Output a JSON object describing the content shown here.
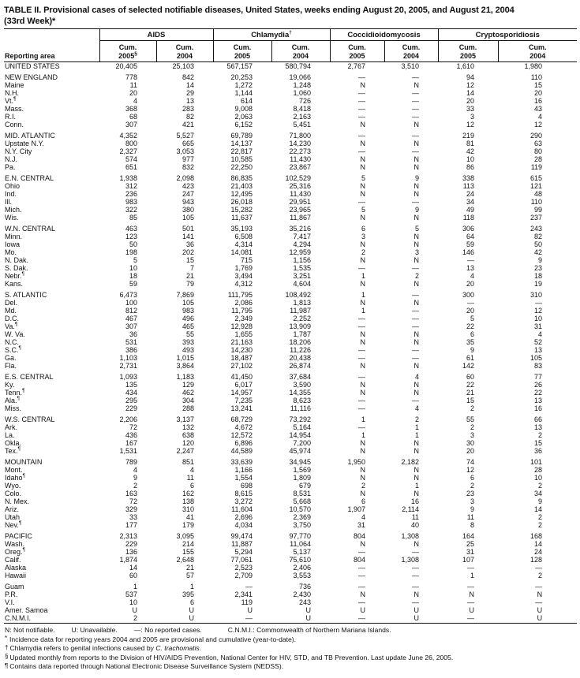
{
  "title": {
    "line1": "TABLE II. Provisional cases of selected notifiable diseases, United States, weeks ending August 20, 2005, and August 21, 2004",
    "line2": "(33rd Week)*"
  },
  "header": {
    "reporting_area": "Reporting area",
    "groups": [
      {
        "name": "AIDS",
        "marker": ""
      },
      {
        "name": "Chlamydia",
        "marker": "†"
      },
      {
        "name": "Coccidioidomycosis",
        "marker": ""
      },
      {
        "name": "Cryptosporidiosis",
        "marker": ""
      }
    ],
    "subcols": [
      {
        "line1": "Cum.",
        "line2": "2005",
        "marker": "§"
      },
      {
        "line1": "Cum.",
        "line2": "2004",
        "marker": ""
      },
      {
        "line1": "Cum.",
        "line2": "2005",
        "marker": ""
      },
      {
        "line1": "Cum.",
        "line2": "2004",
        "marker": ""
      },
      {
        "line1": "Cum.",
        "line2": "2005",
        "marker": ""
      },
      {
        "line1": "Cum.",
        "line2": "2004",
        "marker": ""
      },
      {
        "line1": "Cum.",
        "line2": "2005",
        "marker": ""
      },
      {
        "line1": "Cum.",
        "line2": "2004",
        "marker": ""
      }
    ]
  },
  "rows": [
    {
      "label": "UNITED STATES",
      "marker": "",
      "gap": false,
      "values": [
        "20,405",
        "25,103",
        "567,157",
        "580,794",
        "2,767",
        "3,510",
        "1,610",
        "1,980"
      ]
    },
    {
      "label": "NEW ENGLAND",
      "marker": "",
      "gap": true,
      "values": [
        "778",
        "842",
        "20,253",
        "19,066",
        "—",
        "—",
        "94",
        "110"
      ]
    },
    {
      "label": "Maine",
      "marker": "",
      "gap": false,
      "values": [
        "11",
        "14",
        "1,272",
        "1,248",
        "N",
        "N",
        "12",
        "15"
      ]
    },
    {
      "label": "N.H.",
      "marker": "",
      "gap": false,
      "values": [
        "20",
        "29",
        "1,144",
        "1,060",
        "—",
        "—",
        "14",
        "20"
      ]
    },
    {
      "label": "Vt.",
      "marker": "¶",
      "gap": false,
      "values": [
        "4",
        "13",
        "614",
        "726",
        "—",
        "—",
        "20",
        "16"
      ]
    },
    {
      "label": "Mass.",
      "marker": "",
      "gap": false,
      "values": [
        "368",
        "283",
        "9,008",
        "8,418",
        "—",
        "—",
        "33",
        "43"
      ]
    },
    {
      "label": "R.I.",
      "marker": "",
      "gap": false,
      "values": [
        "68",
        "82",
        "2,063",
        "2,163",
        "—",
        "—",
        "3",
        "4"
      ]
    },
    {
      "label": "Conn.",
      "marker": "",
      "gap": false,
      "values": [
        "307",
        "421",
        "6,152",
        "5,451",
        "N",
        "N",
        "12",
        "12"
      ]
    },
    {
      "label": "MID. ATLANTIC",
      "marker": "",
      "gap": true,
      "values": [
        "4,352",
        "5,527",
        "69,789",
        "71,800",
        "—",
        "—",
        "219",
        "290"
      ]
    },
    {
      "label": "Upstate N.Y.",
      "marker": "",
      "gap": false,
      "values": [
        "800",
        "665",
        "14,137",
        "14,230",
        "N",
        "N",
        "81",
        "63"
      ]
    },
    {
      "label": "N.Y. City",
      "marker": "",
      "gap": false,
      "values": [
        "2,327",
        "3,053",
        "22,817",
        "22,273",
        "—",
        "—",
        "42",
        "80"
      ]
    },
    {
      "label": "N.J.",
      "marker": "",
      "gap": false,
      "values": [
        "574",
        "977",
        "10,585",
        "11,430",
        "N",
        "N",
        "10",
        "28"
      ]
    },
    {
      "label": "Pa.",
      "marker": "",
      "gap": false,
      "values": [
        "651",
        "832",
        "22,250",
        "23,867",
        "N",
        "N",
        "86",
        "119"
      ]
    },
    {
      "label": "E.N. CENTRAL",
      "marker": "",
      "gap": true,
      "values": [
        "1,938",
        "2,098",
        "86,835",
        "102,529",
        "5",
        "9",
        "338",
        "615"
      ]
    },
    {
      "label": "Ohio",
      "marker": "",
      "gap": false,
      "values": [
        "312",
        "423",
        "21,403",
        "25,316",
        "N",
        "N",
        "113",
        "121"
      ]
    },
    {
      "label": "Ind.",
      "marker": "",
      "gap": false,
      "values": [
        "236",
        "247",
        "12,495",
        "11,430",
        "N",
        "N",
        "24",
        "48"
      ]
    },
    {
      "label": "Ill.",
      "marker": "",
      "gap": false,
      "values": [
        "983",
        "943",
        "26,018",
        "29,951",
        "—",
        "—",
        "34",
        "110"
      ]
    },
    {
      "label": "Mich.",
      "marker": "",
      "gap": false,
      "values": [
        "322",
        "380",
        "15,282",
        "23,965",
        "5",
        "9",
        "49",
        "99"
      ]
    },
    {
      "label": "Wis.",
      "marker": "",
      "gap": false,
      "values": [
        "85",
        "105",
        "11,637",
        "11,867",
        "N",
        "N",
        "118",
        "237"
      ]
    },
    {
      "label": "W.N. CENTRAL",
      "marker": "",
      "gap": true,
      "values": [
        "463",
        "501",
        "35,193",
        "35,216",
        "6",
        "5",
        "306",
        "243"
      ]
    },
    {
      "label": "Minn.",
      "marker": "",
      "gap": false,
      "values": [
        "123",
        "141",
        "6,508",
        "7,417",
        "3",
        "N",
        "64",
        "82"
      ]
    },
    {
      "label": "Iowa",
      "marker": "",
      "gap": false,
      "values": [
        "50",
        "36",
        "4,314",
        "4,294",
        "N",
        "N",
        "59",
        "50"
      ]
    },
    {
      "label": "Mo.",
      "marker": "",
      "gap": false,
      "values": [
        "198",
        "202",
        "14,081",
        "12,959",
        "2",
        "3",
        "146",
        "42"
      ]
    },
    {
      "label": "N. Dak.",
      "marker": "",
      "gap": false,
      "values": [
        "5",
        "15",
        "715",
        "1,156",
        "N",
        "N",
        "—",
        "9"
      ]
    },
    {
      "label": "S. Dak.",
      "marker": "",
      "gap": false,
      "values": [
        "10",
        "7",
        "1,769",
        "1,535",
        "—",
        "—",
        "13",
        "23"
      ]
    },
    {
      "label": "Nebr.",
      "marker": "¶",
      "gap": false,
      "values": [
        "18",
        "21",
        "3,494",
        "3,251",
        "1",
        "2",
        "4",
        "18"
      ]
    },
    {
      "label": "Kans.",
      "marker": "",
      "gap": false,
      "values": [
        "59",
        "79",
        "4,312",
        "4,604",
        "N",
        "N",
        "20",
        "19"
      ]
    },
    {
      "label": "S. ATLANTIC",
      "marker": "",
      "gap": true,
      "values": [
        "6,473",
        "7,869",
        "111,795",
        "108,492",
        "1",
        "—",
        "300",
        "310"
      ]
    },
    {
      "label": "Del.",
      "marker": "",
      "gap": false,
      "values": [
        "100",
        "105",
        "2,086",
        "1,813",
        "N",
        "N",
        "—",
        "—"
      ]
    },
    {
      "label": "Md.",
      "marker": "",
      "gap": false,
      "values": [
        "812",
        "983",
        "11,795",
        "11,987",
        "1",
        "—",
        "20",
        "12"
      ]
    },
    {
      "label": "D.C.",
      "marker": "",
      "gap": false,
      "values": [
        "467",
        "496",
        "2,349",
        "2,252",
        "—",
        "—",
        "5",
        "10"
      ]
    },
    {
      "label": "Va.",
      "marker": "¶",
      "gap": false,
      "values": [
        "307",
        "465",
        "12,928",
        "13,909",
        "—",
        "—",
        "22",
        "31"
      ]
    },
    {
      "label": "W. Va.",
      "marker": "",
      "gap": false,
      "values": [
        "36",
        "55",
        "1,655",
        "1,787",
        "N",
        "N",
        "6",
        "4"
      ]
    },
    {
      "label": "N.C.",
      "marker": "",
      "gap": false,
      "values": [
        "531",
        "393",
        "21,163",
        "18,206",
        "N",
        "N",
        "35",
        "52"
      ]
    },
    {
      "label": "S.C.",
      "marker": "¶",
      "gap": false,
      "values": [
        "386",
        "493",
        "14,230",
        "11,226",
        "—",
        "—",
        "9",
        "13"
      ]
    },
    {
      "label": "Ga.",
      "marker": "",
      "gap": false,
      "values": [
        "1,103",
        "1,015",
        "18,487",
        "20,438",
        "—",
        "—",
        "61",
        "105"
      ]
    },
    {
      "label": "Fla.",
      "marker": "",
      "gap": false,
      "values": [
        "2,731",
        "3,864",
        "27,102",
        "26,874",
        "N",
        "N",
        "142",
        "83"
      ]
    },
    {
      "label": "E.S. CENTRAL",
      "marker": "",
      "gap": true,
      "values": [
        "1,093",
        "1,183",
        "41,450",
        "37,684",
        "—",
        "4",
        "60",
        "77"
      ]
    },
    {
      "label": "Ky.",
      "marker": "",
      "gap": false,
      "values": [
        "135",
        "129",
        "6,017",
        "3,590",
        "N",
        "N",
        "22",
        "26"
      ]
    },
    {
      "label": "Tenn.",
      "marker": "¶",
      "gap": false,
      "values": [
        "434",
        "462",
        "14,957",
        "14,355",
        "N",
        "N",
        "21",
        "22"
      ]
    },
    {
      "label": "Ala.",
      "marker": "¶",
      "gap": false,
      "values": [
        "295",
        "304",
        "7,235",
        "8,623",
        "—",
        "—",
        "15",
        "13"
      ]
    },
    {
      "label": "Miss.",
      "marker": "",
      "gap": false,
      "values": [
        "229",
        "288",
        "13,241",
        "11,116",
        "—",
        "4",
        "2",
        "16"
      ]
    },
    {
      "label": "W.S. CENTRAL",
      "marker": "",
      "gap": true,
      "values": [
        "2,206",
        "3,137",
        "68,729",
        "73,292",
        "1",
        "2",
        "55",
        "66"
      ]
    },
    {
      "label": "Ark.",
      "marker": "",
      "gap": false,
      "values": [
        "72",
        "132",
        "4,672",
        "5,164",
        "—",
        "1",
        "2",
        "13"
      ]
    },
    {
      "label": "La.",
      "marker": "",
      "gap": false,
      "values": [
        "436",
        "638",
        "12,572",
        "14,954",
        "1",
        "1",
        "3",
        "2"
      ]
    },
    {
      "label": "Okla.",
      "marker": "",
      "gap": false,
      "values": [
        "167",
        "120",
        "6,896",
        "7,200",
        "N",
        "N",
        "30",
        "15"
      ]
    },
    {
      "label": "Tex.",
      "marker": "¶",
      "gap": false,
      "values": [
        "1,531",
        "2,247",
        "44,589",
        "45,974",
        "N",
        "N",
        "20",
        "36"
      ]
    },
    {
      "label": "MOUNTAIN",
      "marker": "",
      "gap": true,
      "values": [
        "789",
        "851",
        "33,639",
        "34,945",
        "1,950",
        "2,182",
        "74",
        "101"
      ]
    },
    {
      "label": "Mont.",
      "marker": "",
      "gap": false,
      "values": [
        "4",
        "4",
        "1,166",
        "1,569",
        "N",
        "N",
        "12",
        "28"
      ]
    },
    {
      "label": "Idaho",
      "marker": "¶",
      "gap": false,
      "values": [
        "9",
        "11",
        "1,554",
        "1,809",
        "N",
        "N",
        "6",
        "10"
      ]
    },
    {
      "label": "Wyo.",
      "marker": "",
      "gap": false,
      "values": [
        "2",
        "6",
        "698",
        "679",
        "2",
        "1",
        "2",
        "2"
      ]
    },
    {
      "label": "Colo.",
      "marker": "",
      "gap": false,
      "values": [
        "163",
        "162",
        "8,615",
        "8,531",
        "N",
        "N",
        "23",
        "34"
      ]
    },
    {
      "label": "N. Mex.",
      "marker": "",
      "gap": false,
      "values": [
        "72",
        "138",
        "3,272",
        "5,668",
        "6",
        "16",
        "3",
        "9"
      ]
    },
    {
      "label": "Ariz.",
      "marker": "",
      "gap": false,
      "values": [
        "329",
        "310",
        "11,604",
        "10,570",
        "1,907",
        "2,114",
        "9",
        "14"
      ]
    },
    {
      "label": "Utah",
      "marker": "",
      "gap": false,
      "values": [
        "33",
        "41",
        "2,696",
        "2,369",
        "4",
        "11",
        "11",
        "2"
      ]
    },
    {
      "label": "Nev.",
      "marker": "¶",
      "gap": false,
      "values": [
        "177",
        "179",
        "4,034",
        "3,750",
        "31",
        "40",
        "8",
        "2"
      ]
    },
    {
      "label": "PACIFIC",
      "marker": "",
      "gap": true,
      "values": [
        "2,313",
        "3,095",
        "99,474",
        "97,770",
        "804",
        "1,308",
        "164",
        "168"
      ]
    },
    {
      "label": "Wash.",
      "marker": "",
      "gap": false,
      "values": [
        "229",
        "214",
        "11,887",
        "11,064",
        "N",
        "N",
        "25",
        "14"
      ]
    },
    {
      "label": "Oreg.",
      "marker": "¶",
      "gap": false,
      "values": [
        "136",
        "155",
        "5,294",
        "5,137",
        "—",
        "—",
        "31",
        "24"
      ]
    },
    {
      "label": "Calif.",
      "marker": "",
      "gap": false,
      "values": [
        "1,874",
        "2,648",
        "77,061",
        "75,610",
        "804",
        "1,308",
        "107",
        "128"
      ]
    },
    {
      "label": "Alaska",
      "marker": "",
      "gap": false,
      "values": [
        "14",
        "21",
        "2,523",
        "2,406",
        "—",
        "—",
        "—",
        "—"
      ]
    },
    {
      "label": "Hawaii",
      "marker": "",
      "gap": false,
      "values": [
        "60",
        "57",
        "2,709",
        "3,553",
        "—",
        "—",
        "1",
        "2"
      ]
    },
    {
      "label": "Guam",
      "marker": "",
      "gap": true,
      "values": [
        "1",
        "1",
        "—",
        "736",
        "—",
        "—",
        "—",
        "—"
      ]
    },
    {
      "label": "P.R.",
      "marker": "",
      "gap": false,
      "values": [
        "537",
        "395",
        "2,341",
        "2,430",
        "N",
        "N",
        "N",
        "N"
      ]
    },
    {
      "label": "V.I.",
      "marker": "",
      "gap": false,
      "values": [
        "10",
        "6",
        "119",
        "243",
        "—",
        "—",
        "—",
        "—"
      ]
    },
    {
      "label": "Amer. Samoa",
      "marker": "",
      "gap": false,
      "values": [
        "U",
        "U",
        "U",
        "U",
        "U",
        "U",
        "U",
        "U"
      ]
    },
    {
      "label": "C.N.M.I.",
      "marker": "",
      "gap": false,
      "values": [
        "2",
        "U",
        "—",
        "U",
        "—",
        "U",
        "—",
        "U"
      ]
    }
  ],
  "footnotes": {
    "legend": [
      "N: Not notifiable.",
      "U: Unavailable.",
      "—: No reported cases.",
      "C.N.M.I.: Commonwealth of Northern Mariana Islands."
    ],
    "notes": [
      {
        "marker": "*",
        "pre": "Incidence data for reporting years 2004 and 2005 are provisional and cumulative (year-to-date).",
        "italic": "",
        "post": ""
      },
      {
        "marker": "†",
        "pre": "Chlamydia refers to genital infections caused by ",
        "italic": "C. trachomatis",
        "post": "."
      },
      {
        "marker": "§",
        "pre": "Updated monthly from reports to the Division of HIV/AIDS Prevention, National Center for HIV, STD, and TB Prevention. Last update June 26, 2005.",
        "italic": "",
        "post": ""
      },
      {
        "marker": "¶",
        "pre": "Contains data reported through National Electronic Disease Surveillance System (NEDSS).",
        "italic": "",
        "post": ""
      }
    ]
  }
}
